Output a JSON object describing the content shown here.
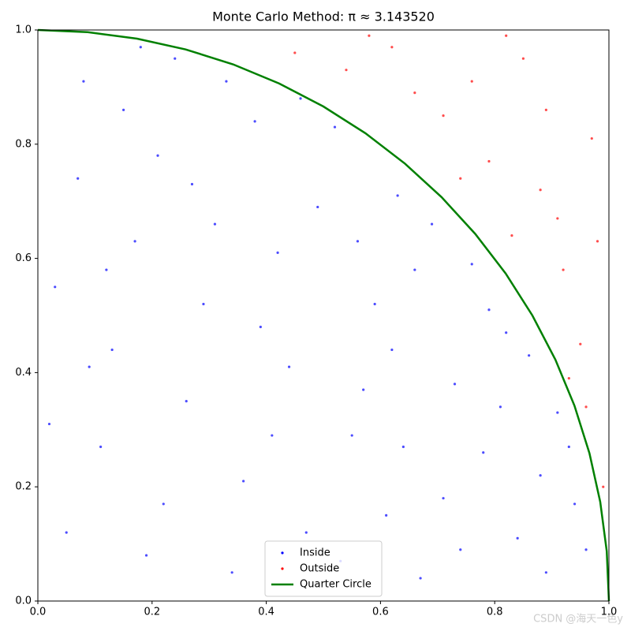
{
  "chart_data": {
    "type": "scatter",
    "title": "Monte Carlo Method: π ≈ 3.143520",
    "watermark": "CSDN @海天一色y",
    "xlim": [
      0,
      1
    ],
    "ylim": [
      0,
      1
    ],
    "xticks": [
      {
        "value": 0,
        "label": "0.0"
      },
      0.2,
      0.4,
      0.6,
      0.8,
      {
        "value": 1,
        "label": "1.0"
      }
    ],
    "yticks": [
      {
        "value": 0,
        "label": "0.0"
      },
      0.2,
      0.4,
      0.6,
      0.8,
      {
        "value": 1,
        "label": "1.0"
      }
    ],
    "legend": "lower center",
    "series": [
      {
        "name": "Inside",
        "color": "#0000ff",
        "type": "scatter",
        "x": [
          0.05,
          0.13,
          0.21,
          0.34,
          0.42,
          0.55,
          0.63,
          0.71,
          0.82,
          0.91,
          0.08,
          0.17,
          0.26,
          0.38,
          0.47,
          0.59,
          0.67,
          0.76,
          0.88,
          0.96,
          0.03,
          0.11,
          0.24,
          0.31,
          0.44,
          0.52,
          0.61,
          0.73,
          0.84,
          0.93,
          0.07,
          0.19,
          0.29,
          0.36,
          0.49,
          0.57,
          0.66,
          0.78,
          0.86,
          0.15,
          0.22,
          0.33,
          0.41,
          0.53,
          0.62,
          0.69,
          0.79,
          0.89,
          0.02,
          0.12,
          0.27,
          0.39,
          0.46,
          0.56,
          0.64,
          0.74,
          0.81,
          0.94,
          0.09,
          0.18
        ],
        "values": [
          0.12,
          0.44,
          0.78,
          0.05,
          0.61,
          0.29,
          0.71,
          0.18,
          0.47,
          0.33,
          0.91,
          0.63,
          0.35,
          0.84,
          0.12,
          0.52,
          0.04,
          0.59,
          0.22,
          0.09,
          0.55,
          0.27,
          0.95,
          0.66,
          0.41,
          0.83,
          0.15,
          0.38,
          0.11,
          0.27,
          0.74,
          0.08,
          0.52,
          0.21,
          0.69,
          0.37,
          0.58,
          0.26,
          0.43,
          0.86,
          0.17,
          0.91,
          0.29,
          0.07,
          0.44,
          0.66,
          0.51,
          0.05,
          0.31,
          0.58,
          0.73,
          0.48,
          0.88,
          0.63,
          0.27,
          0.09,
          0.34,
          0.17,
          0.41,
          0.97
        ]
      },
      {
        "name": "Outside",
        "color": "#ff0000",
        "type": "scatter",
        "x": [
          0.95,
          0.88,
          0.76,
          0.62,
          0.99,
          0.83,
          0.92,
          0.71,
          0.97,
          0.85,
          0.54,
          0.79,
          0.93,
          0.66,
          0.98,
          0.45,
          0.89,
          0.74,
          0.96,
          0.58,
          0.82,
          0.91
        ],
        "values": [
          0.45,
          0.72,
          0.91,
          0.97,
          0.2,
          0.64,
          0.58,
          0.85,
          0.81,
          0.95,
          0.93,
          0.77,
          0.39,
          0.89,
          0.63,
          0.96,
          0.86,
          0.74,
          0.34,
          0.99,
          0.99,
          0.67
        ]
      },
      {
        "name": "Quarter Circle",
        "color": "#008000",
        "type": "line",
        "x": [
          1,
          0.9962,
          0.9848,
          0.9659,
          0.9397,
          0.9063,
          0.866,
          0.8192,
          0.766,
          0.7071,
          0.6428,
          0.5736,
          0.5,
          0.4226,
          0.342,
          0.2588,
          0.1736,
          0.0872,
          0
        ],
        "values": [
          0,
          0.0872,
          0.1736,
          0.2588,
          0.342,
          0.4226,
          0.5,
          0.5736,
          0.6428,
          0.7071,
          0.766,
          0.8192,
          0.866,
          0.9063,
          0.9397,
          0.9659,
          0.9848,
          0.9962,
          1
        ]
      }
    ]
  }
}
